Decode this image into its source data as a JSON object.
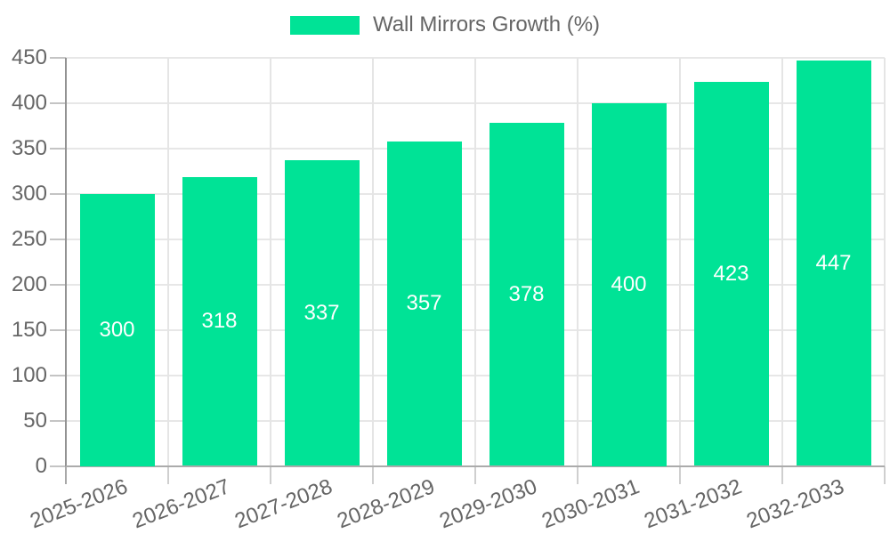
{
  "legend": {
    "position": "top",
    "items": [
      {
        "label": "Wall Mirrors Growth (%)",
        "color": "#00e396"
      }
    ]
  },
  "chart_data": {
    "type": "bar",
    "title": "",
    "categories": [
      "2025-2026",
      "2026-2027",
      "2027-2028",
      "2028-2029",
      "2029-2030",
      "2030-2031",
      "2031-2032",
      "2032-2033"
    ],
    "series": [
      {
        "name": "Wall Mirrors Growth (%)",
        "color": "#00e396",
        "values": [
          300,
          318,
          337,
          357,
          378,
          400,
          423,
          447
        ]
      }
    ],
    "data_labels": {
      "show": true,
      "color": "#ffffff",
      "position": "center"
    },
    "xlabel": "",
    "ylabel": "",
    "ylim": [
      0,
      450
    ],
    "yticks": [
      0,
      50,
      100,
      150,
      200,
      250,
      300,
      350,
      400,
      450
    ],
    "grid": true,
    "legend_position": "top",
    "x_tick_rotation_deg": -21
  },
  "colors": {
    "bar": "#00e396",
    "axis_text": "#666666",
    "data_label_text": "#ffffff",
    "grid_line": "#e7e7e7",
    "axis_line": "#ababab",
    "tick_mark": "#c4c4c4",
    "background": "#ffffff"
  }
}
